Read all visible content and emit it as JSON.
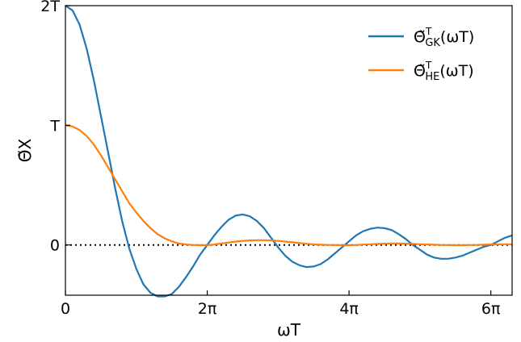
{
  "chart_data": {
    "type": "line",
    "xlabel": "ωT",
    "ylabel": "Θ̃X",
    "xlim": [
      0,
      6.3
    ],
    "x_unit": "π",
    "ylim": [
      -0.42,
      2.0
    ],
    "x_ticks": [
      {
        "value": 0,
        "label": "0"
      },
      {
        "value": 2,
        "label": "2π"
      },
      {
        "value": 4,
        "label": "4π"
      },
      {
        "value": 6,
        "label": "6π"
      }
    ],
    "y_ticks": [
      {
        "value": 0,
        "label": "0"
      },
      {
        "value": 1,
        "label": "T"
      },
      {
        "value": 2,
        "label": "2T"
      }
    ],
    "zero_line": {
      "value": 0,
      "style": "dotted",
      "color": "#000000"
    },
    "grid": false,
    "legend": {
      "placement": "top-right"
    },
    "series": [
      {
        "name": "Θ̃GK(ωT)",
        "name_base": "Θ̃",
        "name_sup": "T",
        "name_sub": "GK",
        "name_tail": "(ωT)",
        "color": "#1f77b4",
        "points": [
          [
            0,
            2.0
          ],
          [
            0.1,
            1.96
          ],
          [
            0.2,
            1.84
          ],
          [
            0.3,
            1.64
          ],
          [
            0.4,
            1.38
          ],
          [
            0.5,
            1.08
          ],
          [
            0.6,
            0.78
          ],
          [
            0.7,
            0.48
          ],
          [
            0.8,
            0.2
          ],
          [
            0.9,
            -0.03
          ],
          [
            1.0,
            -0.2
          ],
          [
            1.1,
            -0.33
          ],
          [
            1.2,
            -0.4
          ],
          [
            1.3,
            -0.43
          ],
          [
            1.4,
            -0.43
          ],
          [
            1.5,
            -0.41
          ],
          [
            1.6,
            -0.35
          ],
          [
            1.7,
            -0.27
          ],
          [
            1.8,
            -0.18
          ],
          [
            1.9,
            -0.08
          ],
          [
            2.0,
            0.0
          ],
          [
            2.1,
            0.08
          ],
          [
            2.2,
            0.15
          ],
          [
            2.3,
            0.21
          ],
          [
            2.4,
            0.245
          ],
          [
            2.5,
            0.255
          ],
          [
            2.6,
            0.24
          ],
          [
            2.7,
            0.2
          ],
          [
            2.8,
            0.14
          ],
          [
            2.9,
            0.06
          ],
          [
            3.0,
            -0.02
          ],
          [
            3.1,
            -0.09
          ],
          [
            3.2,
            -0.14
          ],
          [
            3.3,
            -0.17
          ],
          [
            3.4,
            -0.185
          ],
          [
            3.5,
            -0.18
          ],
          [
            3.6,
            -0.16
          ],
          [
            3.7,
            -0.12
          ],
          [
            3.8,
            -0.07
          ],
          [
            3.9,
            -0.02
          ],
          [
            4.0,
            0.03
          ],
          [
            4.1,
            0.08
          ],
          [
            4.2,
            0.115
          ],
          [
            4.3,
            0.135
          ],
          [
            4.4,
            0.145
          ],
          [
            4.5,
            0.14
          ],
          [
            4.6,
            0.125
          ],
          [
            4.7,
            0.09
          ],
          [
            4.8,
            0.05
          ],
          [
            4.9,
            0.0
          ],
          [
            5.0,
            -0.04
          ],
          [
            5.1,
            -0.08
          ],
          [
            5.2,
            -0.105
          ],
          [
            5.3,
            -0.115
          ],
          [
            5.4,
            -0.115
          ],
          [
            5.5,
            -0.105
          ],
          [
            5.6,
            -0.09
          ],
          [
            5.7,
            -0.065
          ],
          [
            5.8,
            -0.04
          ],
          [
            5.9,
            -0.015
          ],
          [
            6.0,
            0.0
          ],
          [
            6.1,
            0.03
          ],
          [
            6.2,
            0.06
          ],
          [
            6.3,
            0.08
          ]
        ]
      },
      {
        "name": "Θ̃HE(ωT)",
        "name_base": "Θ̃",
        "name_sup": "T",
        "name_sub": "HE",
        "name_tail": "(ωT)",
        "color": "#ff7f0e",
        "points": [
          [
            0,
            1.0
          ],
          [
            0.1,
            0.99
          ],
          [
            0.2,
            0.96
          ],
          [
            0.3,
            0.91
          ],
          [
            0.4,
            0.84
          ],
          [
            0.5,
            0.75
          ],
          [
            0.6,
            0.65
          ],
          [
            0.7,
            0.55
          ],
          [
            0.8,
            0.45
          ],
          [
            0.9,
            0.35
          ],
          [
            1.0,
            0.27
          ],
          [
            1.1,
            0.2
          ],
          [
            1.2,
            0.14
          ],
          [
            1.3,
            0.09
          ],
          [
            1.4,
            0.055
          ],
          [
            1.5,
            0.03
          ],
          [
            1.6,
            0.012
          ],
          [
            1.7,
            0.004
          ],
          [
            1.8,
            0.0
          ],
          [
            1.9,
            -0.002
          ],
          [
            2.0,
            -0.002
          ],
          [
            2.1,
            0.004
          ],
          [
            2.2,
            0.012
          ],
          [
            2.3,
            0.02
          ],
          [
            2.4,
            0.028
          ],
          [
            2.5,
            0.034
          ],
          [
            2.6,
            0.038
          ],
          [
            2.7,
            0.04
          ],
          [
            2.8,
            0.04
          ],
          [
            2.9,
            0.038
          ],
          [
            3.0,
            0.034
          ],
          [
            3.1,
            0.028
          ],
          [
            3.2,
            0.022
          ],
          [
            3.3,
            0.016
          ],
          [
            3.4,
            0.01
          ],
          [
            3.5,
            0.005
          ],
          [
            3.6,
            0.002
          ],
          [
            3.7,
            0.0
          ],
          [
            3.8,
            -0.001
          ],
          [
            3.9,
            -0.002
          ],
          [
            4.0,
            -0.002
          ],
          [
            4.1,
            0.0
          ],
          [
            4.2,
            0.003
          ],
          [
            4.3,
            0.006
          ],
          [
            4.4,
            0.009
          ],
          [
            4.5,
            0.011
          ],
          [
            4.6,
            0.012
          ],
          [
            4.7,
            0.012
          ],
          [
            4.8,
            0.011
          ],
          [
            4.9,
            0.009
          ],
          [
            5.0,
            0.006
          ],
          [
            5.1,
            0.004
          ],
          [
            5.2,
            0.002
          ],
          [
            5.3,
            0.0
          ],
          [
            5.4,
            -0.001
          ],
          [
            5.5,
            -0.002
          ],
          [
            5.6,
            -0.002
          ],
          [
            5.7,
            -0.001
          ],
          [
            5.8,
            0.0
          ],
          [
            5.9,
            0.002
          ],
          [
            6.0,
            0.004
          ],
          [
            6.1,
            0.005
          ],
          [
            6.2,
            0.006
          ],
          [
            6.3,
            0.006
          ]
        ]
      }
    ]
  }
}
